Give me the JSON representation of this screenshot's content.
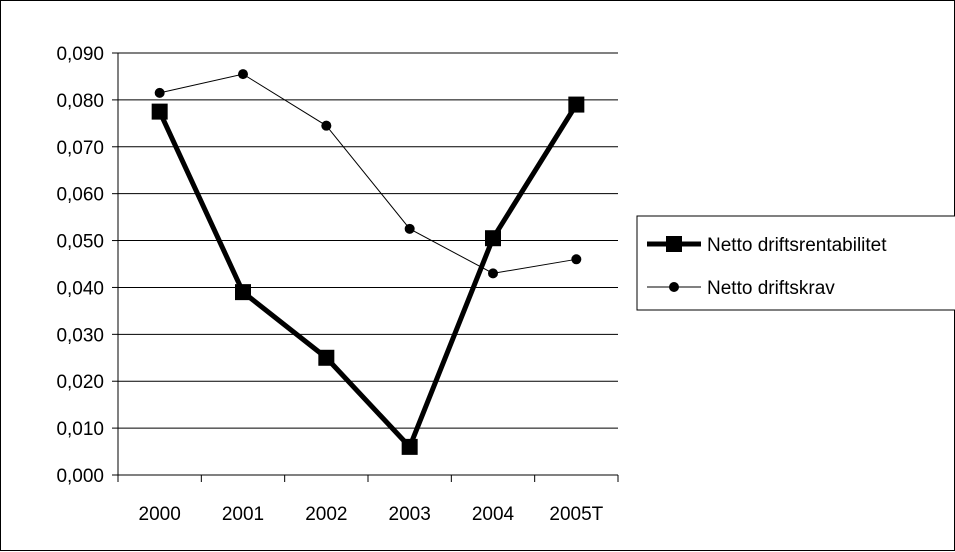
{
  "chart_data": {
    "type": "line",
    "categories": [
      "2000",
      "2001",
      "2002",
      "2003",
      "2004",
      "2005T"
    ],
    "series": [
      {
        "name": "Netto driftsrentabilitet",
        "values": [
          0.0775,
          0.039,
          0.025,
          0.006,
          0.0505,
          0.079
        ],
        "color": "#000000",
        "marker": "square",
        "line_style": "thick"
      },
      {
        "name": "Netto driftskrav",
        "values": [
          0.0815,
          0.0855,
          0.0745,
          0.0525,
          0.043,
          0.046
        ],
        "color": "#000000",
        "marker": "circle",
        "line_style": "thin"
      }
    ],
    "title": "",
    "xlabel": "",
    "ylabel": "",
    "ylim": [
      0,
      0.09
    ],
    "yticks": [
      "0,000",
      "0,010",
      "0,020",
      "0,030",
      "0,040",
      "0,050",
      "0,060",
      "0,070",
      "0,080",
      "0,090"
    ],
    "grid": "horizontal",
    "legend_position": "right"
  }
}
